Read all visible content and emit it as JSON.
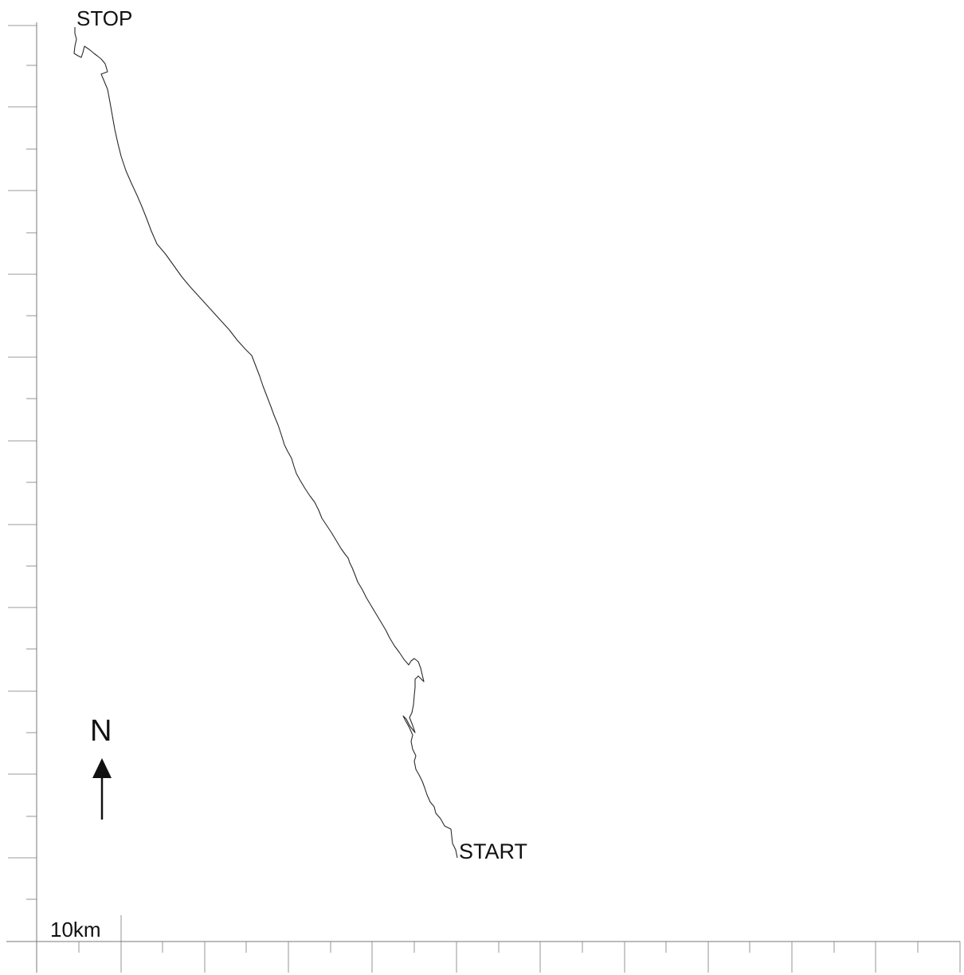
{
  "labels": {
    "start": "START",
    "stop": "STOP",
    "north": "N",
    "scale": "10km"
  },
  "colors": {
    "track": "#2a2a2a",
    "axis": "#7a7a7a",
    "ink": "#111111"
  },
  "icons": {
    "north_arrow": "north-arrow-icon"
  }
}
